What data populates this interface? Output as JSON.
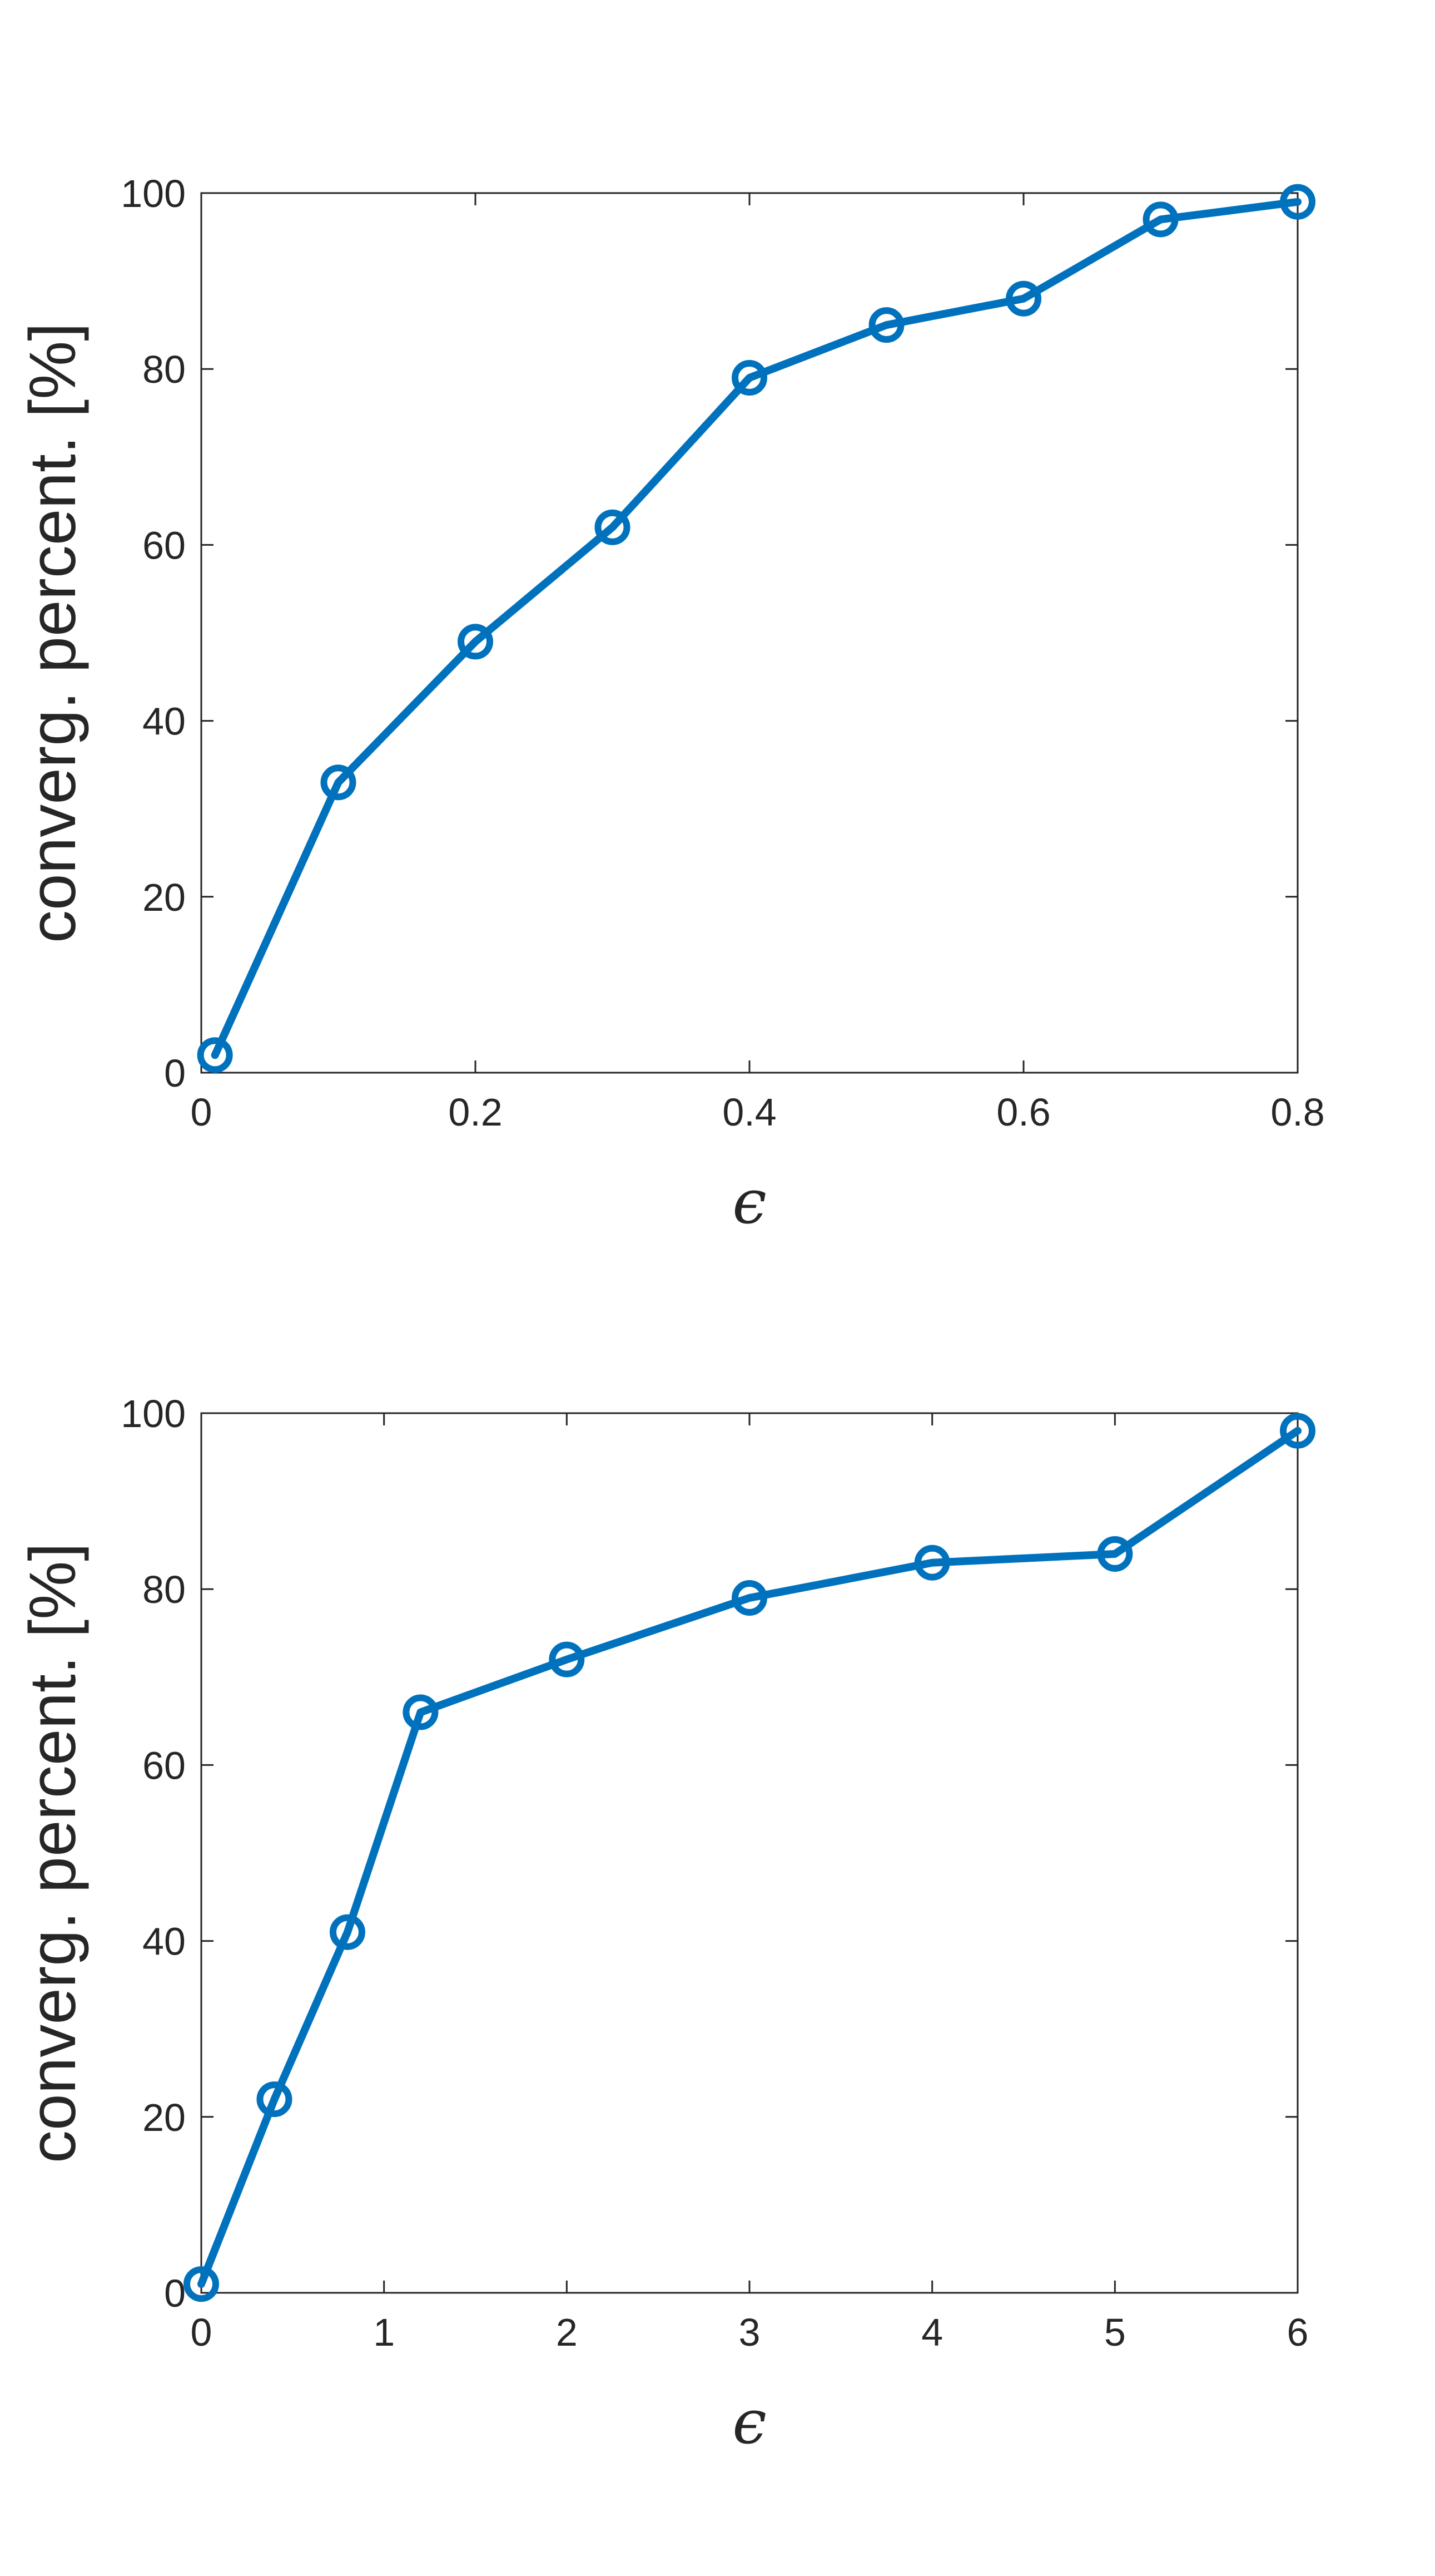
{
  "chart_data": [
    {
      "type": "line",
      "xlabel": "ϵ",
      "ylabel": "converg. percent. [%]",
      "xlim": [
        0,
        0.8
      ],
      "ylim": [
        0,
        100
      ],
      "xticks": [
        0,
        0.2,
        0.4,
        0.6,
        0.8
      ],
      "xtick_labels": [
        "0",
        "0.2",
        "0.4",
        "0.6",
        "0.8"
      ],
      "yticks": [
        0,
        20,
        40,
        60,
        80,
        100
      ],
      "ytick_labels": [
        "0",
        "20",
        "40",
        "60",
        "80",
        "100"
      ],
      "grid": false,
      "marker": "circle",
      "color": "#0072BD",
      "x": [
        0.01,
        0.1,
        0.2,
        0.3,
        0.4,
        0.5,
        0.6,
        0.7,
        0.8
      ],
      "y": [
        2,
        33,
        49,
        62,
        79,
        85,
        88,
        97,
        99
      ]
    },
    {
      "type": "line",
      "xlabel": "ϵ",
      "ylabel": "converg. percent. [%]",
      "xlim": [
        0,
        6
      ],
      "ylim": [
        0,
        100
      ],
      "xticks": [
        0,
        1,
        2,
        3,
        4,
        5,
        6
      ],
      "xtick_labels": [
        "0",
        "1",
        "2",
        "3",
        "4",
        "5",
        "6"
      ],
      "yticks": [
        0,
        20,
        40,
        60,
        80,
        100
      ],
      "ytick_labels": [
        "0",
        "20",
        "40",
        "60",
        "80",
        "100"
      ],
      "grid": false,
      "marker": "circle",
      "color": "#0072BD",
      "x": [
        0,
        0.4,
        0.8,
        1.2,
        2,
        3,
        4,
        5,
        6
      ],
      "y": [
        1,
        22,
        41,
        66,
        72,
        79,
        83,
        84,
        98
      ]
    }
  ]
}
